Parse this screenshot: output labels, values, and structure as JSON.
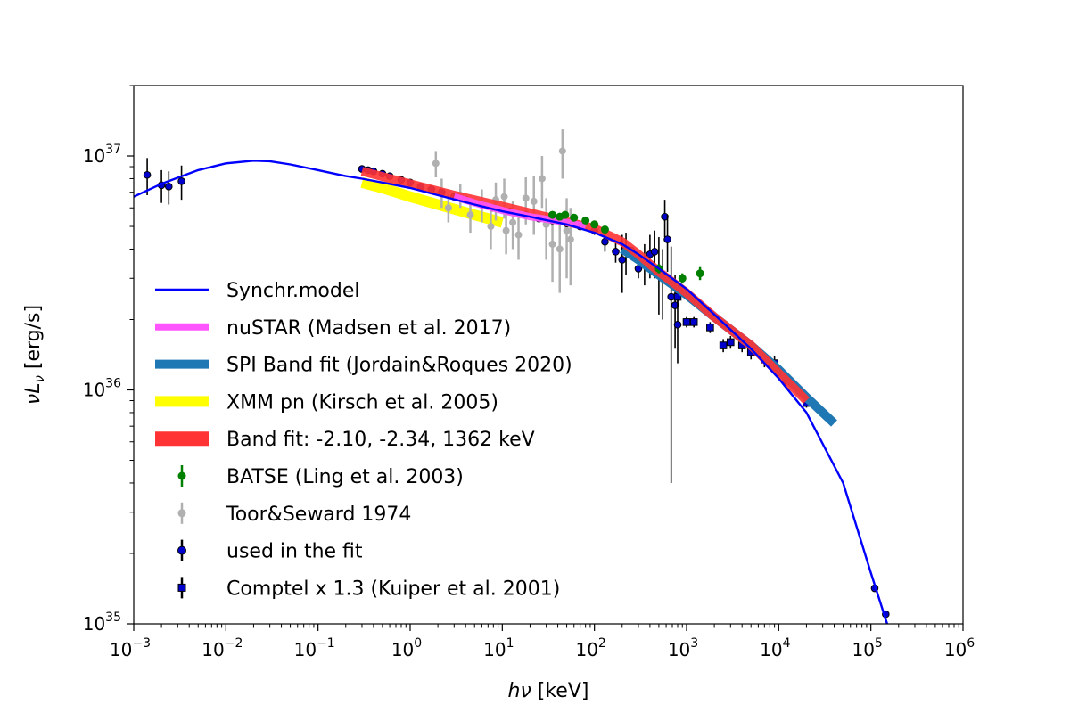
{
  "chart_data": {
    "type": "scatter",
    "title": "",
    "xlabel": "hν [keV]",
    "ylabel": "νL_ν [erg/s]",
    "x_scale": "log",
    "y_scale": "log",
    "xlim": [
      0.001,
      1000000
    ],
    "ylim": [
      1e+35,
      2e+37
    ],
    "grid": false,
    "legend_position": "lower-left",
    "x_ticks": [
      {
        "value": 0.001,
        "base": "10",
        "exp": "−3"
      },
      {
        "value": 0.01,
        "base": "10",
        "exp": "−2"
      },
      {
        "value": 0.1,
        "base": "10",
        "exp": "−1"
      },
      {
        "value": 1,
        "base": "10",
        "exp": "0"
      },
      {
        "value": 10,
        "base": "10",
        "exp": "1"
      },
      {
        "value": 100,
        "base": "10",
        "exp": "2"
      },
      {
        "value": 1000,
        "base": "10",
        "exp": "3"
      },
      {
        "value": 10000,
        "base": "10",
        "exp": "4"
      },
      {
        "value": 100000,
        "base": "10",
        "exp": "5"
      },
      {
        "value": 1000000,
        "base": "10",
        "exp": "6"
      }
    ],
    "y_ticks": [
      {
        "value": 1e+35,
        "base": "10",
        "exp": "35"
      },
      {
        "value": 1e+36,
        "base": "10",
        "exp": "36"
      },
      {
        "value": 1e+37,
        "base": "10",
        "exp": "37"
      }
    ],
    "series": [
      {
        "name": "Synchr.model",
        "kind": "line",
        "color": "#0000ff",
        "x": [
          0.001,
          0.002,
          0.005,
          0.01,
          0.02,
          0.03,
          0.05,
          0.1,
          0.2,
          0.3,
          0.5,
          1,
          2,
          5,
          10,
          20,
          50,
          100,
          200,
          300,
          500,
          1000,
          2000,
          5000,
          10000,
          20000,
          50000,
          100000,
          150000
        ],
        "y": [
          6.7e+36,
          7.6e+36,
          8.7e+36,
          9.3e+36,
          9.55e+36,
          9.5e+36,
          9.2e+36,
          8.7e+36,
          8.2e+36,
          8e+36,
          7.7e+36,
          7.3e+36,
          6.8e+36,
          6.2e+36,
          5.8e+36,
          5.5e+36,
          5.1e+36,
          4.7e+36,
          4.2e+36,
          3.8e+36,
          3.3e+36,
          2.7e+36,
          2.1e+36,
          1.5e+36,
          1.12e+36,
          8e+35,
          4e+35,
          1.65e+35,
          1e+35
        ]
      },
      {
        "name": "nuSTAR (Madsen et al. 2017)",
        "kind": "band",
        "color": "#ff55ff",
        "x": [
          3,
          5,
          10,
          20,
          50,
          80
        ],
        "y": [
          6.7e+36,
          6.3e+36,
          5.85e+36,
          5.5e+36,
          5.2e+36,
          5e+36
        ]
      },
      {
        "name": "SPI Band fit (Jordain&Roques 2020)",
        "kind": "band",
        "color": "#1f77b4",
        "x": [
          200,
          300,
          500,
          1000,
          2000,
          5000,
          10000,
          20000,
          40000
        ],
        "y": [
          4e+36,
          3.6e+36,
          3.1e+36,
          2.55e+36,
          2.05e+36,
          1.55e+36,
          1.22e+36,
          9.3e+35,
          7.2e+35
        ]
      },
      {
        "name": "XMM pn (Kirsch et al. 2005)",
        "kind": "band",
        "color": "#ffff00",
        "x": [
          0.3,
          0.5,
          1,
          2,
          5,
          10
        ],
        "y": [
          7.7e+36,
          7.3e+36,
          6.7e+36,
          6.2e+36,
          5.6e+36,
          5.2e+36
        ]
      },
      {
        "name": "Band fit: -2.10, -2.34, 1362 keV",
        "kind": "band",
        "color": "#ff3333",
        "x": [
          0.3,
          1,
          3,
          10,
          30,
          100,
          200,
          300,
          500,
          1000,
          2000,
          5000,
          10000,
          20000
        ],
        "y": [
          8.6e+36,
          7.6e+36,
          6.8e+36,
          6.1e+36,
          5.5e+36,
          4.9e+36,
          4.3e+36,
          3.8e+36,
          3.2e+36,
          2.6e+36,
          2.05e+36,
          1.55e+36,
          1.18e+36,
          9e+35
        ]
      },
      {
        "name": "BATSE (Ling et al. 2003)",
        "kind": "errorbar",
        "marker": "circle",
        "color": "#008000",
        "points": [
          {
            "x": 35,
            "y": 5.6e+36,
            "yerr": [
              1.5e+35,
              1.5e+35
            ]
          },
          {
            "x": 42,
            "y": 5.5e+36,
            "yerr": [
              1.5e+35,
              1.5e+35
            ]
          },
          {
            "x": 48,
            "y": 5.6e+36,
            "yerr": [
              1.5e+35,
              1.5e+35
            ]
          },
          {
            "x": 60,
            "y": 5.45e+36,
            "yerr": [
              1.5e+35,
              1.5e+35
            ]
          },
          {
            "x": 80,
            "y": 5.3e+36,
            "yerr": [
              1.5e+35,
              1.5e+35
            ]
          },
          {
            "x": 100,
            "y": 5.1e+36,
            "yerr": [
              1.5e+35,
              1.5e+35
            ]
          },
          {
            "x": 130,
            "y": 4.85e+36,
            "yerr": [
              1.5e+35,
              1.5e+35
            ]
          },
          {
            "x": 500,
            "y": 3.3e+36,
            "yerr": [
              1.5e+35,
              1.5e+35
            ]
          },
          {
            "x": 900,
            "y": 3e+36,
            "yerr": [
              1.5e+35,
              1.5e+35
            ]
          },
          {
            "x": 1400,
            "y": 3.15e+36,
            "yerr": [
              2e+35,
              2e+35
            ]
          }
        ]
      },
      {
        "name": "Toor&Seward 1974",
        "kind": "errorbar",
        "marker": "circle",
        "color": "#b0b0b0",
        "points": [
          {
            "x": 1.9,
            "y": 9.3e+36,
            "yerr": [
              1.2e+36,
              1.2e+36
            ]
          },
          {
            "x": 2.2,
            "y": 7e+36,
            "yerr": [
              1e+36,
              1e+36
            ]
          },
          {
            "x": 2.6,
            "y": 6e+36,
            "yerr": [
              8e+35,
              8e+35
            ]
          },
          {
            "x": 3.5,
            "y": 6.8e+36,
            "yerr": [
              8e+35,
              8e+35
            ]
          },
          {
            "x": 4.5,
            "y": 5.6e+36,
            "yerr": [
              9e+35,
              9e+35
            ]
          },
          {
            "x": 6.0,
            "y": 6.2e+36,
            "yerr": [
              1e+36,
              1e+36
            ]
          },
          {
            "x": 7.5,
            "y": 5e+36,
            "yerr": [
              1e+36,
              1e+36
            ]
          },
          {
            "x": 8.5,
            "y": 6.5e+36,
            "yerr": [
              1.2e+36,
              1.2e+36
            ]
          },
          {
            "x": 10.5,
            "y": 6.7e+36,
            "yerr": [
              1.3e+36,
              1.3e+36
            ]
          },
          {
            "x": 11,
            "y": 4.8e+36,
            "yerr": [
              1e+36,
              1e+36
            ]
          },
          {
            "x": 13,
            "y": 5.2e+36,
            "yerr": [
              1.2e+36,
              1.2e+36
            ]
          },
          {
            "x": 15,
            "y": 4.6e+36,
            "yerr": [
              1e+36,
              1e+36
            ]
          },
          {
            "x": 18,
            "y": 6.6e+36,
            "yerr": [
              1.5e+36,
              1.5e+36
            ]
          },
          {
            "x": 22,
            "y": 6.4e+36,
            "yerr": [
              1.8e+36,
              1.8e+36
            ]
          },
          {
            "x": 27,
            "y": 8e+36,
            "yerr": [
              2e+36,
              2e+36
            ]
          },
          {
            "x": 30,
            "y": 5.1e+36,
            "yerr": [
              1.5e+36,
              1.5e+36
            ]
          },
          {
            "x": 35,
            "y": 4.2e+36,
            "yerr": [
              1.3e+36,
              1.3e+36
            ]
          },
          {
            "x": 42,
            "y": 4e+36,
            "yerr": [
              1.4e+36,
              1.4e+36
            ]
          },
          {
            "x": 45,
            "y": 1.05e+37,
            "yerr": [
              2.5e+36,
              2.5e+36
            ]
          },
          {
            "x": 50,
            "y": 4.8e+36,
            "yerr": [
              1.8e+36,
              1.8e+36
            ]
          },
          {
            "x": 55,
            "y": 4.4e+36,
            "yerr": [
              1.6e+36,
              1.6e+36
            ]
          }
        ]
      },
      {
        "name": "used in the fit",
        "kind": "errorbar",
        "marker": "circle",
        "color": "#0000cc",
        "edge": "#000000",
        "points": [
          {
            "x": 0.0014,
            "y": 8.3e+36,
            "yerr": [
              1.5e+36,
              1.5e+36
            ]
          },
          {
            "x": 0.002,
            "y": 7.5e+36,
            "yerr": [
              1.2e+36,
              1.2e+36
            ]
          },
          {
            "x": 0.0024,
            "y": 7.4e+36,
            "yerr": [
              1.2e+36,
              1.2e+36
            ]
          },
          {
            "x": 0.0033,
            "y": 7.8e+36,
            "yerr": [
              1.3e+36,
              1.3e+36
            ]
          },
          {
            "x": 0.3,
            "y": 8.8e+36,
            "yerr": [
              1e+35,
              1e+35
            ]
          },
          {
            "x": 0.35,
            "y": 8.7e+36,
            "yerr": [
              1e+35,
              1e+35
            ]
          },
          {
            "x": 0.4,
            "y": 8.6e+36,
            "yerr": [
              1e+35,
              1e+35
            ]
          },
          {
            "x": 0.5,
            "y": 8.4e+36,
            "yerr": [
              1e+35,
              1e+35
            ]
          },
          {
            "x": 0.6,
            "y": 8.2e+36,
            "yerr": [
              1e+35,
              1e+35
            ]
          },
          {
            "x": 0.8,
            "y": 7.9e+36,
            "yerr": [
              1e+35,
              1e+35
            ]
          },
          {
            "x": 1.0,
            "y": 7.7e+36,
            "yerr": [
              1e+35,
              1e+35
            ]
          },
          {
            "x": 1.3,
            "y": 7.4e+36,
            "yerr": [
              1e+35,
              1e+35
            ]
          },
          {
            "x": 1.7,
            "y": 7.2e+36,
            "yerr": [
              1e+35,
              1e+35
            ]
          },
          {
            "x": 2.2,
            "y": 7e+36,
            "yerr": [
              1e+35,
              1e+35
            ]
          },
          {
            "x": 3.0,
            "y": 6.7e+36,
            "yerr": [
              1e+35,
              1e+35
            ]
          },
          {
            "x": 4.0,
            "y": 6.5e+36,
            "yerr": [
              1e+35,
              1e+35
            ]
          },
          {
            "x": 6.0,
            "y": 6.2e+36,
            "yerr": [
              1e+35,
              1e+35
            ]
          },
          {
            "x": 8.0,
            "y": 6e+36,
            "yerr": [
              1e+35,
              1e+35
            ]
          },
          {
            "x": 12,
            "y": 5.8e+36,
            "yerr": [
              1e+35,
              1e+35
            ]
          },
          {
            "x": 18,
            "y": 5.6e+36,
            "yerr": [
              1e+35,
              1e+35
            ]
          },
          {
            "x": 25,
            "y": 5.4e+36,
            "yerr": [
              1e+35,
              1e+35
            ]
          },
          {
            "x": 35,
            "y": 5.3e+36,
            "yerr": [
              1e+35,
              1e+35
            ]
          },
          {
            "x": 50,
            "y": 5.15e+36,
            "yerr": [
              1e+35,
              1e+35
            ]
          },
          {
            "x": 70,
            "y": 5e+36,
            "yerr": [
              1e+35,
              1e+35
            ]
          },
          {
            "x": 100,
            "y": 4.8e+36,
            "yerr": [
              2e+35,
              2e+35
            ]
          },
          {
            "x": 130,
            "y": 4.3e+36,
            "yerr": [
              4e+35,
              4e+35
            ]
          },
          {
            "x": 170,
            "y": 3.9e+36,
            "yerr": [
              4e+35,
              4e+35
            ]
          },
          {
            "x": 200,
            "y": 3.6e+36,
            "yerr": [
              1e+36,
              1e+36
            ]
          },
          {
            "x": 220,
            "y": 3.9e+36,
            "yerr": [
              8e+35,
              8e+35
            ]
          },
          {
            "x": 250,
            "y": 3.95e+36,
            "yerr": [
              1e+35,
              1e+35
            ]
          },
          {
            "x": 300,
            "y": 3.3e+36,
            "yerr": [
              3e+35,
              3e+35
            ]
          },
          {
            "x": 350,
            "y": 3.5e+36,
            "yerr": [
              7e+35,
              7e+35
            ]
          },
          {
            "x": 400,
            "y": 3.8e+36,
            "yerr": [
              8e+35,
              8e+35
            ]
          },
          {
            "x": 450,
            "y": 3.9e+36,
            "yerr": [
              9e+35,
              9e+35
            ]
          },
          {
            "x": 500,
            "y": 3.3e+36,
            "yerr": [
              1.2e+36,
              1.2e+36
            ]
          },
          {
            "x": 550,
            "y": 3e+36,
            "yerr": [
              1e+36,
              1e+36
            ]
          },
          {
            "x": 580,
            "y": 5.5e+36,
            "yerr": [
              1e+36,
              1e+36
            ]
          },
          {
            "x": 620,
            "y": 4.4e+36,
            "yerr": [
              1.2e+36,
              1.2e+36
            ]
          },
          {
            "x": 680,
            "y": 2.5e+36,
            "yerr": [
              2.1e+36,
              1.6e+36
            ]
          },
          {
            "x": 750,
            "y": 2.3e+36,
            "yerr": [
              8e+35,
              8e+35
            ]
          },
          {
            "x": 800,
            "y": 1.9e+36,
            "yerr": [
              6e+35,
              6e+35
            ]
          },
          {
            "x": 110000,
            "y": 1.42e+35,
            "yerr": [
              5e+33,
              5e+33
            ]
          },
          {
            "x": 145000,
            "y": 1.1e+35,
            "yerr": [
              4e+33,
              4e+33
            ]
          }
        ]
      },
      {
        "name": "Comptel x 1.3 (Kuiper et al. 2001)",
        "kind": "errorbar",
        "marker": "square",
        "color": "#0000cc",
        "edge": "#000000",
        "points": [
          {
            "x": 800,
            "y": 2.5e+36,
            "yerr": [
              2e+35,
              2e+35
            ]
          },
          {
            "x": 1000,
            "y": 1.95e+36,
            "yerr": [
              1e+35,
              1e+35
            ]
          },
          {
            "x": 1200,
            "y": 1.95e+36,
            "yerr": [
              1e+35,
              1e+35
            ]
          },
          {
            "x": 1800,
            "y": 1.85e+36,
            "yerr": [
              1e+35,
              1e+35
            ]
          },
          {
            "x": 2500,
            "y": 1.55e+36,
            "yerr": [
              1e+35,
              1e+35
            ]
          },
          {
            "x": 3000,
            "y": 1.6e+36,
            "yerr": [
              1e+35,
              1e+35
            ]
          },
          {
            "x": 4000,
            "y": 1.55e+36,
            "yerr": [
              1e+35,
              1e+35
            ]
          },
          {
            "x": 5000,
            "y": 1.45e+36,
            "yerr": [
              1e+35,
              1e+35
            ]
          },
          {
            "x": 7000,
            "y": 1.35e+36,
            "yerr": [
              1e+35,
              1e+35
            ]
          },
          {
            "x": 9000,
            "y": 1.3e+36,
            "yerr": [
              1e+35,
              1e+35
            ]
          },
          {
            "x": 12000,
            "y": 1.1e+36,
            "yerr": [
              6e+34,
              6e+34
            ]
          },
          {
            "x": 20000,
            "y": 8.8e+35,
            "yerr": [
              4e+34,
              4e+34
            ]
          }
        ]
      }
    ]
  }
}
